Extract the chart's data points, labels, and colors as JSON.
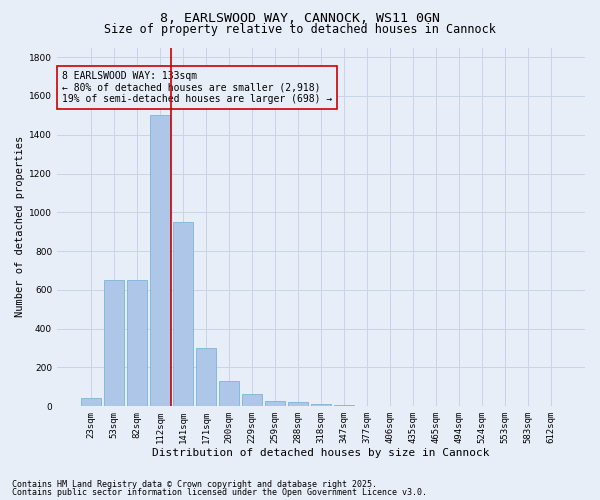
{
  "title1": "8, EARLSWOOD WAY, CANNOCK, WS11 0GN",
  "title2": "Size of property relative to detached houses in Cannock",
  "xlabel": "Distribution of detached houses by size in Cannock",
  "ylabel": "Number of detached properties",
  "bar_labels": [
    "23sqm",
    "53sqm",
    "82sqm",
    "112sqm",
    "141sqm",
    "171sqm",
    "200sqm",
    "229sqm",
    "259sqm",
    "288sqm",
    "318sqm",
    "347sqm",
    "377sqm",
    "406sqm",
    "435sqm",
    "465sqm",
    "494sqm",
    "524sqm",
    "553sqm",
    "583sqm",
    "612sqm"
  ],
  "bar_values": [
    40,
    650,
    650,
    1500,
    950,
    300,
    130,
    65,
    25,
    20,
    10,
    5,
    2,
    0,
    0,
    0,
    0,
    0,
    0,
    0,
    0
  ],
  "bar_color": "#aec6e8",
  "bar_edge_color": "#6aaed6",
  "grid_color": "#c8d4e8",
  "background_color": "#e8eef8",
  "red_line_index": 4,
  "red_line_color": "#cc0000",
  "annotation_line1": "8 EARLSWOOD WAY: 133sqm",
  "annotation_line2": "← 80% of detached houses are smaller (2,918)",
  "annotation_line3": "19% of semi-detached houses are larger (698) →",
  "annotation_box_color": "#cc0000",
  "ylim": [
    0,
    1850
  ],
  "yticks": [
    0,
    200,
    400,
    600,
    800,
    1000,
    1200,
    1400,
    1600,
    1800
  ],
  "footer1": "Contains HM Land Registry data © Crown copyright and database right 2025.",
  "footer2": "Contains public sector information licensed under the Open Government Licence v3.0.",
  "title1_fontsize": 9.5,
  "title2_fontsize": 8.5,
  "xlabel_fontsize": 8,
  "ylabel_fontsize": 7.5,
  "tick_fontsize": 6.5,
  "annotation_fontsize": 7,
  "footer_fontsize": 6
}
